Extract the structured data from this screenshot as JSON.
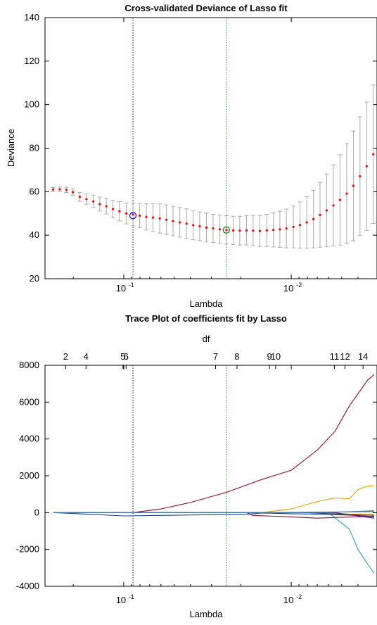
{
  "chart_data": [
    {
      "type": "scatter",
      "title": "Cross-validated Deviance of Lasso fit",
      "xlabel": "Lambda",
      "ylabel": "Deviance",
      "x_scale": "log-reversed",
      "xlim": [
        0.295,
        0.00308
      ],
      "ylim": [
        20,
        140
      ],
      "x_ticks": [
        {
          "value": 0.1,
          "label": "10",
          "exp": "-1"
        },
        {
          "value": 0.01,
          "label": "10",
          "exp": "-2"
        }
      ],
      "y_ticks": [
        20,
        40,
        60,
        80,
        100,
        120,
        140
      ],
      "grid": false,
      "series": [
        {
          "role": "cv-mean-with-errorbars",
          "color": "#ff0000",
          "errorbar_color": "#aaaaaa",
          "x": [
            0.264,
            0.241,
            0.22,
            0.201,
            0.183,
            0.167,
            0.152,
            0.139,
            0.127,
            0.116,
            0.106,
            0.0965,
            0.088,
            0.0803,
            0.0733,
            0.0669,
            0.061,
            0.0556,
            0.0508,
            0.0463,
            0.0422,
            0.0385,
            0.0352,
            0.0321,
            0.0293,
            0.0267,
            0.0244,
            0.0222,
            0.0203,
            0.0185,
            0.0169,
            0.0154,
            0.014,
            0.0128,
            0.0117,
            0.0107,
            0.00972,
            0.00887,
            0.00809,
            0.00738,
            0.00674,
            0.00615,
            0.00561,
            0.00512,
            0.00467,
            0.00426,
            0.00389,
            0.00355,
            0.00324
          ],
          "y": [
            61.0,
            61.1,
            60.8,
            59.8,
            57.6,
            56.6,
            55.5,
            54.3,
            53.3,
            52.0,
            51.0,
            50.0,
            49.5,
            49.0,
            48.4,
            48.1,
            47.7,
            47.1,
            46.5,
            45.9,
            45.3,
            44.6,
            44.1,
            43.5,
            43.1,
            42.7,
            42.4,
            42.2,
            42.1,
            42.2,
            42.1,
            41.9,
            42.2,
            42.4,
            42.7,
            43.1,
            43.8,
            44.7,
            45.9,
            47.4,
            49.3,
            51.4,
            53.7,
            56.2,
            59.1,
            62.7,
            67.1,
            71.7,
            77.2
          ],
          "err": [
            0.9,
            1.0,
            1.2,
            1.5,
            2.0,
            2.4,
            2.8,
            3.2,
            3.6,
            4.0,
            4.4,
            4.8,
            5.2,
            5.6,
            6.0,
            6.4,
            6.7,
            6.8,
            6.8,
            6.8,
            6.8,
            6.7,
            6.6,
            6.6,
            6.5,
            6.5,
            6.5,
            6.5,
            6.6,
            6.7,
            6.9,
            7.1,
            7.4,
            7.8,
            8.3,
            8.9,
            9.6,
            10.6,
            11.8,
            13.2,
            14.8,
            16.7,
            18.6,
            20.8,
            23.0,
            25.2,
            27.3,
            29.5,
            31.8
          ]
        },
        {
          "role": "marker-min",
          "color": "#008000",
          "x": 0.0244,
          "y": 42.4
        },
        {
          "role": "marker-1se",
          "color": "#0000ff",
          "x": 0.0881,
          "y": 49.0
        }
      ],
      "vlines": [
        {
          "x": 0.0881,
          "color": "#0000ff"
        },
        {
          "x": 0.0244,
          "color": "#00aa00"
        }
      ]
    },
    {
      "type": "line",
      "title": "Trace Plot of coefficients fit by Lasso",
      "xlabel": "Lambda",
      "ylabel": "",
      "top_axis_label": "df",
      "x_scale": "log-reversed",
      "xlim": [
        0.295,
        0.00308
      ],
      "ylim": [
        -4000,
        8000
      ],
      "x_ticks": [
        {
          "value": 0.1,
          "label": "10",
          "exp": "-1"
        },
        {
          "value": 0.01,
          "label": "10",
          "exp": "-2"
        }
      ],
      "y_ticks": [
        -4000,
        -2000,
        0,
        2000,
        4000,
        6000,
        8000
      ],
      "df_ticks": [
        {
          "label": "2",
          "x": 0.222
        },
        {
          "label": "4",
          "x": 0.168
        },
        {
          "label": "5",
          "x": 0.101
        },
        {
          "label": "6",
          "x": 0.0968
        },
        {
          "label": "7",
          "x": 0.0283
        },
        {
          "label": "8",
          "x": 0.0211
        },
        {
          "label": "9",
          "x": 0.0135
        },
        {
          "label": "10",
          "x": 0.0124
        },
        {
          "label": "11",
          "x": 0.00553
        },
        {
          "label": "12",
          "x": 0.00478
        },
        {
          "label": "14",
          "x": 0.00373
        }
      ],
      "vlines": [
        {
          "x": 0.0881,
          "color": "#0000ff"
        },
        {
          "x": 0.0244,
          "color": "#00aa00"
        }
      ],
      "series": [
        {
          "color": "#8b0a2a",
          "x": [
            0.264,
            0.1,
            0.0881,
            0.06,
            0.04,
            0.0244,
            0.0185,
            0.015,
            0.01,
            0.007,
            0.0055,
            0.0045,
            0.0035,
            0.0032
          ],
          "y": [
            0,
            0,
            0,
            200,
            550,
            1100,
            1500,
            1800,
            2300,
            3400,
            4400,
            5800,
            7200,
            7500
          ]
        },
        {
          "color": "#e8a000",
          "x": [
            0.264,
            0.015,
            0.01,
            0.007,
            0.0055,
            0.0045,
            0.004,
            0.0035,
            0.0032
          ],
          "y": [
            0,
            0,
            200,
            600,
            800,
            750,
            1250,
            1450,
            1450
          ]
        },
        {
          "color": "#2a9fd6",
          "x": [
            0.264,
            0.006,
            0.0045,
            0.004,
            0.0035,
            0.0032
          ],
          "y": [
            0,
            0,
            -900,
            -2000,
            -2800,
            -3300
          ]
        },
        {
          "color": "#1f3a93",
          "x": [
            0.264,
            0.2,
            0.1,
            0.06,
            0.03,
            0.0185,
            0.015,
            0.01,
            0.007,
            0.004,
            0.0032
          ],
          "y": [
            0,
            -50,
            -180,
            -150,
            -110,
            -90,
            -20,
            -60,
            -80,
            -150,
            -230
          ]
        },
        {
          "color": "#7a1030",
          "x": [
            0.264,
            0.0185,
            0.017,
            0.01,
            0.007,
            0.005,
            0.0032
          ],
          "y": [
            0,
            0,
            -150,
            -230,
            -300,
            -250,
            -200
          ]
        },
        {
          "color": "#228b22",
          "x": [
            0.264,
            0.012,
            0.007,
            0.0045,
            0.0032
          ],
          "y": [
            0,
            0,
            30,
            40,
            50
          ]
        },
        {
          "color": "#ff8c00",
          "x": [
            0.264,
            0.009,
            0.006,
            0.0045,
            0.0032
          ],
          "y": [
            0,
            0,
            -30,
            -80,
            -100
          ]
        },
        {
          "color": "#800080",
          "x": [
            0.264,
            0.0055,
            0.0045,
            0.0032
          ],
          "y": [
            0,
            0,
            -120,
            -300
          ]
        },
        {
          "color": "#444444",
          "x": [
            0.264,
            0.008,
            0.006,
            0.0032
          ],
          "y": [
            0,
            0,
            -60,
            -150
          ]
        },
        {
          "color": "#4682b4",
          "x": [
            0.264,
            0.006,
            0.0045,
            0.0032
          ],
          "y": [
            0,
            0,
            50,
            100
          ]
        }
      ]
    }
  ]
}
